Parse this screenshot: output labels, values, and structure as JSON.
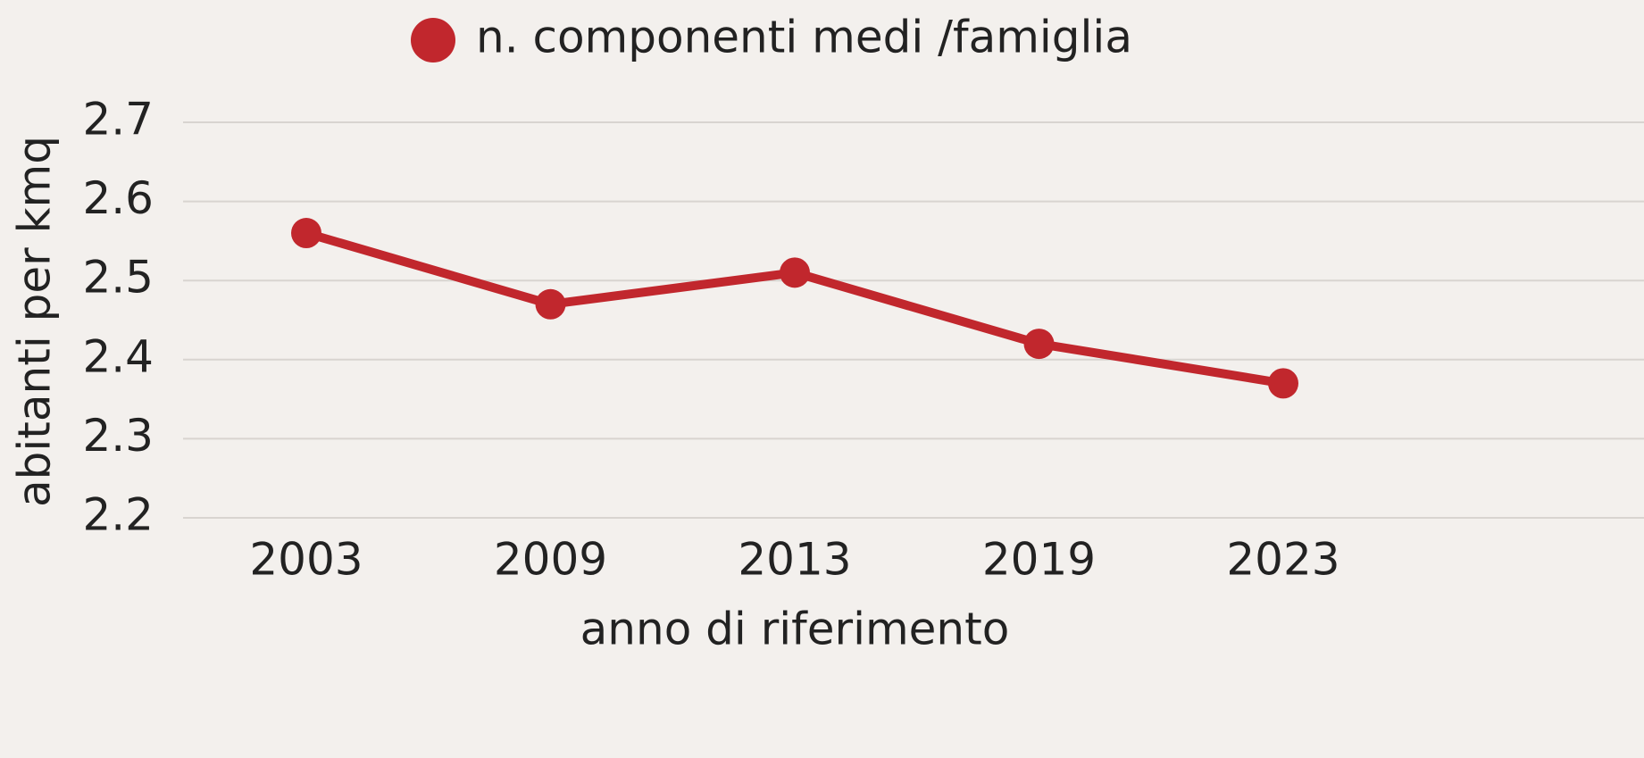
{
  "chart_data": {
    "type": "line",
    "categories": [
      "2003",
      "2009",
      "2013",
      "2019",
      "2023"
    ],
    "series": [
      {
        "name": "n. componenti medi /famiglia",
        "color": "#c1272d",
        "values": [
          2.56,
          2.47,
          2.51,
          2.42,
          2.37
        ]
      }
    ],
    "ylim": [
      2.2,
      2.7
    ],
    "yticks": [
      2.2,
      2.3,
      2.4,
      2.5,
      2.6,
      2.7
    ],
    "y_label": "abitanti per kmq",
    "x_label": "anno di riferimento",
    "grid": true,
    "legend": "top"
  }
}
